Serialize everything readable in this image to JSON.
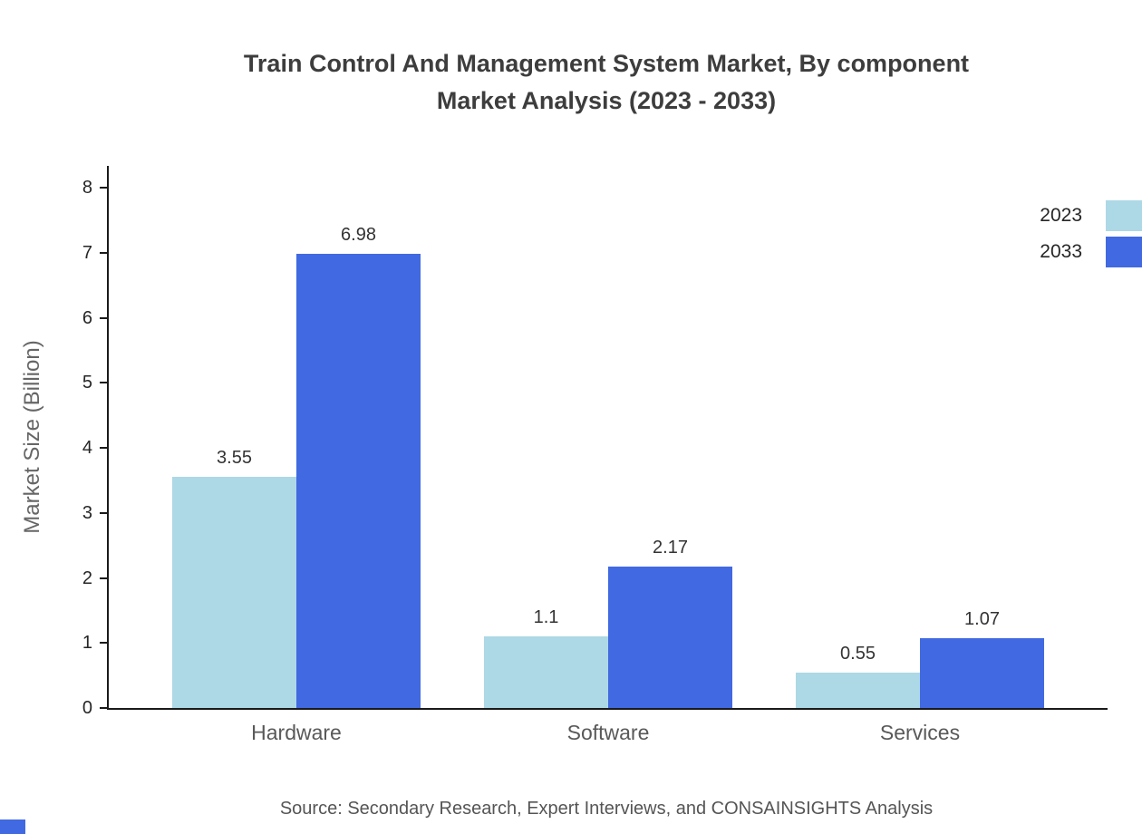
{
  "title": {
    "line1": "Train Control And Management System Market, By component",
    "line2": "Market Analysis (2023 - 2033)"
  },
  "source": "Source: Secondary Research, Expert Interviews, and CONSAINSIGHTS Analysis",
  "colors": {
    "series_2023": "#add8e6",
    "series_2033": "#4169e1",
    "axis": "#1a1a1a"
  },
  "chart_data": {
    "type": "bar",
    "title": "Train Control And Management System Market, By component Market Analysis (2023 - 2033)",
    "categories": [
      "Hardware",
      "Software",
      "Services"
    ],
    "series": [
      {
        "name": "2023",
        "color": "#add8e6",
        "values": [
          3.55,
          1.1,
          0.55
        ]
      },
      {
        "name": "2033",
        "color": "#4169e1",
        "values": [
          6.98,
          2.17,
          1.07
        ]
      }
    ],
    "xlabel": "",
    "ylabel": "Market Size (Billion)",
    "ylim": [
      0,
      8
    ],
    "yticks": [
      0,
      1,
      2,
      3,
      4,
      5,
      6,
      7,
      8
    ],
    "grid": false,
    "legend_position": "top-right"
  }
}
